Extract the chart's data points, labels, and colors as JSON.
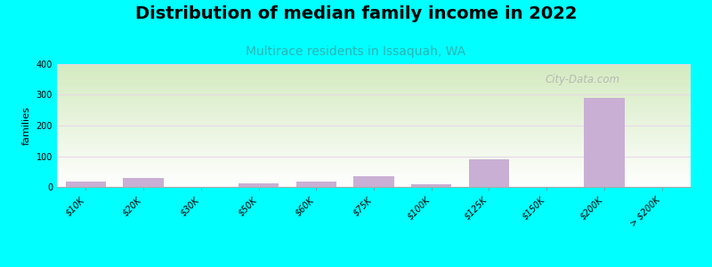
{
  "title": "Distribution of median family income in 2022",
  "subtitle": "Multirace residents in Issaquah, WA",
  "ylabel": "families",
  "categories": [
    "$10K",
    "$20K",
    "$30K",
    "$50K",
    "$60K",
    "$75K",
    "$100K",
    "$125K",
    "$150K",
    "$200K",
    "> $200K"
  ],
  "values": [
    18,
    30,
    0,
    12,
    18,
    35,
    8,
    90,
    0,
    290,
    0
  ],
  "bar_color": "#c9afd4",
  "bg_color": "#00ffff",
  "plot_bg_top": "#ffffff",
  "plot_bg_bottom": "#d4eac0",
  "grid_color": "#e8d8e8",
  "title_fontsize": 14,
  "subtitle_fontsize": 10,
  "ylabel_fontsize": 8,
  "tick_fontsize": 7,
  "ylim": [
    0,
    400
  ],
  "yticks": [
    0,
    100,
    200,
    300,
    400
  ],
  "watermark": "City-Data.com"
}
